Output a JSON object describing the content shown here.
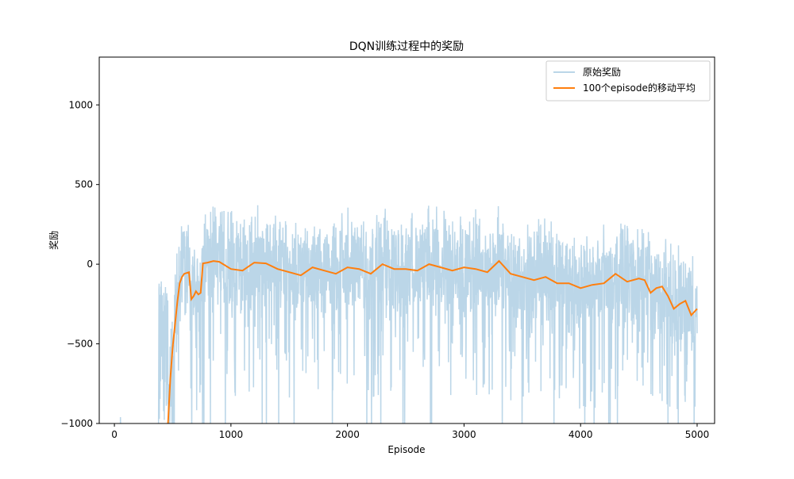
{
  "chart_data": {
    "type": "line",
    "title": "DQN训练过程中的奖励",
    "xlabel": "Episode",
    "ylabel": "奖励",
    "xlim": [
      -130,
      5150
    ],
    "ylim": [
      -1000,
      1300
    ],
    "xticks": [
      0,
      1000,
      2000,
      3000,
      4000,
      5000
    ],
    "yticks": [
      -1000,
      -500,
      0,
      500,
      1000
    ],
    "legend_position": "top-right",
    "grid": false,
    "series": [
      {
        "name": "原始奖励",
        "color": "#1f77b4",
        "alpha": 0.3,
        "note_values": "raw per-episode rewards (noisy, thousands of points)"
      },
      {
        "name": "100个episode的移动平均",
        "color": "#ff7f0e",
        "x": [
          460,
          480,
          500,
          520,
          540,
          560,
          580,
          600,
          620,
          640,
          660,
          680,
          700,
          720,
          740,
          760,
          800,
          850,
          900,
          1000,
          1100,
          1200,
          1300,
          1400,
          1500,
          1600,
          1700,
          1800,
          1900,
          2000,
          2100,
          2200,
          2300,
          2400,
          2500,
          2600,
          2700,
          2800,
          2900,
          3000,
          3100,
          3200,
          3300,
          3400,
          3500,
          3600,
          3700,
          3800,
          3900,
          4000,
          4100,
          4200,
          4300,
          4400,
          4500,
          4550,
          4600,
          4650,
          4700,
          4750,
          4800,
          4850,
          4900,
          4950,
          5000
        ],
        "y": [
          -1000,
          -720,
          -520,
          -380,
          -240,
          -120,
          -80,
          -60,
          -55,
          -50,
          -220,
          -200,
          -170,
          -190,
          -180,
          5,
          10,
          20,
          15,
          -30,
          -40,
          10,
          5,
          -30,
          -50,
          -70,
          -20,
          -40,
          -60,
          -20,
          -30,
          -60,
          0,
          -30,
          -30,
          -40,
          0,
          -20,
          -40,
          -20,
          -30,
          -50,
          20,
          -60,
          -80,
          -100,
          -80,
          -120,
          -120,
          -150,
          -130,
          -120,
          -60,
          -110,
          -90,
          -100,
          -180,
          -150,
          -140,
          -200,
          -280,
          -250,
          -230,
          -320,
          -280
        ]
      }
    ]
  }
}
